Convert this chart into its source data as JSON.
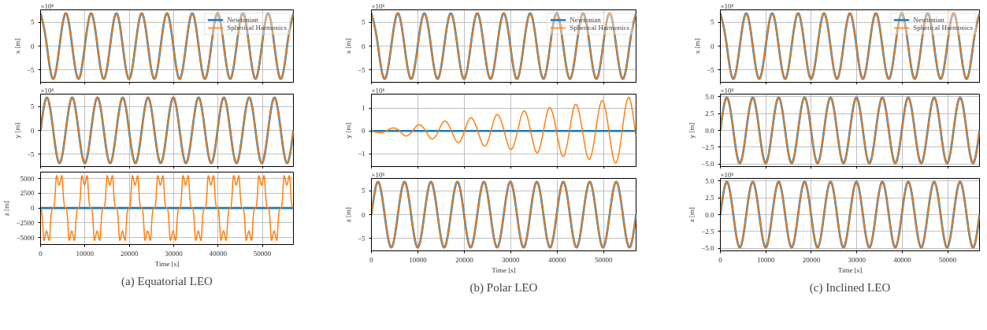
{
  "chart_data": [
    {
      "type": "line",
      "ylabel": "x [m]",
      "annotations": [
        "×10⁶"
      ],
      "legend": "top right",
      "grid": true,
      "tick_labels": "y",
      "xlim": [
        0,
        57000
      ],
      "xticks": [
        0,
        10000,
        20000,
        30000,
        40000,
        50000
      ],
      "ylim": [
        -7.6,
        7.6
      ],
      "yticks": [
        {
          "value": -5,
          "label": "−5"
        },
        0,
        5
      ],
      "x": [
        0,
        1425,
        2850,
        4275,
        5700,
        7125,
        8550,
        9975,
        11400,
        12825,
        14250,
        15675,
        17100,
        18525,
        19950,
        21375,
        22800,
        24225,
        25650,
        27075,
        28500,
        29925,
        31350,
        32775,
        34200,
        35625,
        37050,
        38475,
        39900,
        41325,
        42750,
        44175,
        45600,
        47025,
        48450,
        49875,
        51300,
        52725,
        54150,
        55575,
        57000
      ],
      "series": [
        {
          "name": "Newtonian",
          "color": "#1f77b4",
          "values": [
            6.9,
            0,
            -6.9,
            0,
            6.9,
            0,
            -6.9,
            0,
            6.9,
            0,
            -6.9,
            0,
            6.9,
            0,
            -6.9,
            0,
            6.9,
            0,
            -6.9,
            0,
            6.9,
            0,
            -6.9,
            0,
            6.9,
            0,
            -6.9,
            0,
            6.9,
            0,
            -6.9,
            0,
            6.9,
            0,
            -6.9,
            0,
            6.9,
            0,
            -6.9,
            0,
            6.9
          ]
        },
        {
          "name": "Spherical Harmonics",
          "color": "#ff7f0e",
          "values": [
            6.9,
            0,
            -6.9,
            0,
            6.9,
            0,
            -6.9,
            0,
            6.9,
            0,
            -6.9,
            0,
            6.9,
            0,
            -6.9,
            0,
            6.9,
            0,
            -6.9,
            0,
            6.9,
            0,
            -6.9,
            0,
            6.9,
            0,
            -6.9,
            0,
            6.9,
            0,
            -6.9,
            0,
            6.9,
            0,
            -6.9,
            0,
            6.9,
            0,
            -6.9,
            0,
            6.9
          ]
        }
      ]
    },
    {
      "type": "line",
      "ylabel": "y [m]",
      "annotations": [
        "×10⁶"
      ],
      "grid": true,
      "tick_labels": "y",
      "xlim": [
        0,
        57000
      ],
      "xticks": [
        0,
        10000,
        20000,
        30000,
        40000,
        50000
      ],
      "ylim": [
        -7.6,
        7.6
      ],
      "yticks": [
        {
          "value": -5,
          "label": "−5"
        },
        0,
        5
      ],
      "x": [
        0,
        1425,
        2850,
        4275,
        5700,
        7125,
        8550,
        9975,
        11400,
        12825,
        14250,
        15675,
        17100,
        18525,
        19950,
        21375,
        22800,
        24225,
        25650,
        27075,
        28500,
        29925,
        31350,
        32775,
        34200,
        35625,
        37050,
        38475,
        39900,
        41325,
        42750,
        44175,
        45600,
        47025,
        48450,
        49875,
        51300,
        52725,
        54150,
        55575,
        57000
      ],
      "series": [
        {
          "color": "#1f77b4",
          "values": [
            0,
            6.9,
            0,
            -6.9,
            0,
            6.9,
            0,
            -6.9,
            0,
            6.9,
            0,
            -6.9,
            0,
            6.9,
            0,
            -6.9,
            0,
            6.9,
            0,
            -6.9,
            0,
            6.9,
            0,
            -6.9,
            0,
            6.9,
            0,
            -6.9,
            0,
            6.9,
            0,
            -6.9,
            0,
            6.9,
            0,
            -6.9,
            0,
            6.9,
            0,
            -6.9,
            0
          ]
        },
        {
          "color": "#ff7f0e",
          "values": [
            0,
            6.9,
            0,
            -6.9,
            0,
            6.9,
            0,
            -6.9,
            0,
            6.9,
            0,
            -6.9,
            0,
            6.9,
            0,
            -6.9,
            0,
            6.9,
            0,
            -6.9,
            0,
            6.9,
            0,
            -6.9,
            0,
            6.9,
            0,
            -6.9,
            0,
            6.9,
            0,
            -6.9,
            0,
            6.9,
            0,
            -6.9,
            0,
            6.9,
            0,
            -6.9,
            0
          ]
        }
      ]
    },
    {
      "type": "line",
      "title": "(a) Equatorial LEO",
      "xlabel": "Time [s]",
      "ylabel": "z [m]",
      "grid": true,
      "xlim": [
        0,
        57000
      ],
      "xticks": [
        0,
        10000,
        20000,
        30000,
        40000,
        50000
      ],
      "ylim": [
        -6200,
        6100
      ],
      "yticks": [
        {
          "value": -5000,
          "label": "−5000"
        },
        {
          "value": -2500,
          "label": "−2500"
        },
        0,
        2500,
        5000
      ],
      "series": [
        {
          "color": "#1f77b4",
          "x": [
            0,
            57000
          ],
          "values": [
            0,
            0
          ]
        },
        {
          "color": "#ff7f0e",
          "x": [
            0,
            200,
            450,
            750,
            1350,
            1950,
            2250,
            2550,
            2850,
            3050,
            3300,
            3600,
            4200,
            4800,
            5100,
            5400,
            5700,
            5900,
            6150,
            6450,
            7050,
            7650,
            7950,
            8250,
            8550,
            8750,
            9000,
            9300,
            9900,
            10500,
            10800,
            11100,
            11400,
            11600,
            11850,
            12150,
            12750,
            13350,
            13650,
            13950,
            14250,
            14450,
            14700,
            15000,
            15600,
            16200,
            16500,
            16800,
            17100,
            17300,
            17550,
            17850,
            18450,
            19050,
            19350,
            19650,
            19950,
            20150,
            20400,
            20700,
            21300,
            21900,
            22200,
            22500,
            22800,
            23000,
            23250,
            23550,
            24150,
            24750,
            25050,
            25350,
            25650,
            25850,
            26100,
            26400,
            27000,
            27600,
            27900,
            28200,
            28500,
            28700,
            28950,
            29250,
            29850,
            30450,
            30750,
            31050,
            31350,
            31550,
            31800,
            32100,
            32700,
            33300,
            33600,
            33900,
            34200,
            34400,
            34650,
            34950,
            35550,
            36150,
            36450,
            36750,
            37050,
            37250,
            37500,
            37800,
            38400,
            39000,
            39300,
            39600,
            39900,
            40100,
            40350,
            40650,
            41250,
            41850,
            42150,
            42450,
            42750,
            42950,
            43200,
            43500,
            44100,
            44700,
            45000,
            45300,
            45600,
            45800,
            46050,
            46350,
            46950,
            47550,
            47850,
            48150,
            48450,
            48650,
            48900,
            49200,
            49800,
            50400,
            50700,
            51000,
            51300,
            51500,
            51750,
            52050,
            52650,
            53250,
            53550,
            53850,
            54150,
            54350,
            54600,
            54900,
            55500,
            56100,
            56400,
            56700,
            57000
          ],
          "values": [
            0,
            -300,
            -2500,
            -5500,
            -3900,
            -5500,
            -2500,
            -300,
            0,
            300,
            2500,
            5500,
            3900,
            5500,
            2500,
            300,
            0,
            -300,
            -2500,
            -5500,
            -3900,
            -5500,
            -2500,
            -300,
            0,
            300,
            2500,
            5500,
            3900,
            5500,
            2500,
            300,
            0,
            -300,
            -2500,
            -5500,
            -3900,
            -5500,
            -2500,
            -300,
            0,
            300,
            2500,
            5500,
            3900,
            5500,
            2500,
            300,
            0,
            -300,
            -2500,
            -5500,
            -3900,
            -5500,
            -2500,
            -300,
            0,
            300,
            2500,
            5500,
            3900,
            5500,
            2500,
            300,
            0,
            -300,
            -2500,
            -5500,
            -3900,
            -5500,
            -2500,
            -300,
            0,
            300,
            2500,
            5500,
            3900,
            5500,
            2500,
            300,
            0,
            -300,
            -2500,
            -5500,
            -3900,
            -5500,
            -2500,
            -300,
            0,
            300,
            2500,
            5500,
            3900,
            5500,
            2500,
            300,
            0,
            -300,
            -2500,
            -5500,
            -3900,
            -5500,
            -2500,
            -300,
            0,
            300,
            2500,
            5500,
            3900,
            5500,
            2500,
            300,
            0,
            -300,
            -2500,
            -5500,
            -3900,
            -5500,
            -2500,
            -300,
            0,
            300,
            2500,
            5500,
            3900,
            5500,
            2500,
            300,
            0,
            -300,
            -2500,
            -5500,
            -3900,
            -5500,
            -2500,
            -300,
            0,
            300,
            2500,
            5500,
            3900,
            5500,
            2500,
            300,
            0,
            -300,
            -2500,
            -5500,
            -3900,
            -5500,
            -2500,
            -300,
            0,
            300,
            2500,
            5500,
            3900,
            5500,
            2500,
            300,
            0
          ]
        }
      ]
    },
    {
      "type": "line",
      "ylabel": "x [m]",
      "annotations": [
        "×10⁶"
      ],
      "legend": "top right",
      "grid": true,
      "tick_labels": "y",
      "xlim": [
        0,
        57000
      ],
      "xticks": [
        0,
        10000,
        20000,
        30000,
        40000,
        50000
      ],
      "ylim": [
        -7.6,
        7.6
      ],
      "yticks": [
        {
          "value": -5,
          "label": "−5"
        },
        0,
        5
      ],
      "x": [
        0,
        1425,
        2850,
        4275,
        5700,
        7125,
        8550,
        9975,
        11400,
        12825,
        14250,
        15675,
        17100,
        18525,
        19950,
        21375,
        22800,
        24225,
        25650,
        27075,
        28500,
        29925,
        31350,
        32775,
        34200,
        35625,
        37050,
        38475,
        39900,
        41325,
        42750,
        44175,
        45600,
        47025,
        48450,
        49875,
        51300,
        52725,
        54150,
        55575,
        57000
      ],
      "series": [
        {
          "name": "Newtonian",
          "color": "#1f77b4",
          "values": [
            6.9,
            0,
            -6.9,
            0,
            6.9,
            0,
            -6.9,
            0,
            6.9,
            0,
            -6.9,
            0,
            6.9,
            0,
            -6.9,
            0,
            6.9,
            0,
            -6.9,
            0,
            6.9,
            0,
            -6.9,
            0,
            6.9,
            0,
            -6.9,
            0,
            6.9,
            0,
            -6.9,
            0,
            6.9,
            0,
            -6.9,
            0,
            6.9,
            0,
            -6.9,
            0,
            6.9
          ]
        },
        {
          "name": "Spherical Harmonics",
          "color": "#ff7f0e",
          "values": [
            6.9,
            0,
            -6.9,
            0,
            6.9,
            0,
            -6.9,
            0,
            6.9,
            0,
            -6.9,
            0,
            6.9,
            0,
            -6.9,
            0,
            6.9,
            0,
            -6.9,
            0,
            6.9,
            0,
            -6.9,
            0,
            6.9,
            0,
            -6.9,
            0,
            6.9,
            0,
            -6.9,
            0,
            6.9,
            0,
            -6.9,
            0,
            6.9,
            0,
            -6.9,
            0,
            6.9
          ]
        }
      ]
    },
    {
      "type": "line",
      "ylabel": "y [m]",
      "annotations": [
        "×10⁶"
      ],
      "grid": true,
      "tick_labels": "y",
      "xlim": [
        0,
        57000
      ],
      "xticks": [
        0,
        10000,
        20000,
        30000,
        40000,
        50000
      ],
      "ylim": [
        -1.55,
        1.6
      ],
      "yticks": [
        {
          "value": -1,
          "label": "−1"
        },
        0,
        1
      ],
      "series": [
        {
          "color": "#1f77b4",
          "x": [
            0,
            57000
          ],
          "values": [
            0,
            0
          ]
        },
        {
          "color": "#ff7f0e",
          "x": [
            0,
            1850,
            3255,
            4660,
            6065,
            7470,
            8860,
            10250,
            11675,
            13100,
            14450,
            15800,
            17250,
            18700,
            20050,
            21400,
            22900,
            24400,
            25750,
            27100,
            28580,
            30060,
            31480,
            32900,
            34300,
            35700,
            37050,
            38400,
            39850,
            41300,
            42650,
            44000,
            45450,
            46900,
            48300,
            49700,
            51150,
            52600,
            54000,
            55400,
            56800,
            57000
          ],
          "values": [
            0,
            -0.08,
            0,
            0.13,
            0,
            -0.22,
            0,
            0.27,
            0,
            -0.35,
            0,
            0.43,
            0,
            -0.51,
            0,
            0.57,
            0,
            -0.66,
            0,
            0.71,
            0,
            -0.81,
            0,
            0.87,
            0,
            -0.95,
            0,
            1.02,
            0,
            -1.11,
            0,
            1.16,
            0,
            -1.24,
            0,
            1.32,
            0,
            -1.4,
            0,
            1.46,
            0,
            -0.2
          ]
        }
      ]
    },
    {
      "type": "line",
      "title": "(b) Polar LEO",
      "xlabel": "Time [s]",
      "ylabel": "z [m]",
      "annotations": [
        "×10⁶"
      ],
      "grid": true,
      "xlim": [
        0,
        57000
      ],
      "xticks": [
        0,
        10000,
        20000,
        30000,
        40000,
        50000
      ],
      "ylim": [
        -7.6,
        7.6
      ],
      "yticks": [
        {
          "value": -5,
          "label": "−5"
        },
        0,
        5
      ],
      "x": [
        0,
        1425,
        2850,
        4275,
        5700,
        7125,
        8550,
        9975,
        11400,
        12825,
        14250,
        15675,
        17100,
        18525,
        19950,
        21375,
        22800,
        24225,
        25650,
        27075,
        28500,
        29925,
        31350,
        32775,
        34200,
        35625,
        37050,
        38475,
        39900,
        41325,
        42750,
        44175,
        45600,
        47025,
        48450,
        49875,
        51300,
        52725,
        54150,
        55575,
        57000
      ],
      "series": [
        {
          "color": "#1f77b4",
          "values": [
            0,
            6.9,
            0,
            -6.9,
            0,
            6.9,
            0,
            -6.9,
            0,
            6.9,
            0,
            -6.9,
            0,
            6.9,
            0,
            -6.9,
            0,
            6.9,
            0,
            -6.9,
            0,
            6.9,
            0,
            -6.9,
            0,
            6.9,
            0,
            -6.9,
            0,
            6.9,
            0,
            -6.9,
            0,
            6.9,
            0,
            -6.9,
            0,
            6.9,
            0,
            -6.9,
            0
          ]
        },
        {
          "color": "#ff7f0e",
          "values": [
            0,
            6.9,
            0,
            -6.9,
            0,
            6.9,
            0,
            -6.9,
            0,
            6.9,
            0,
            -6.9,
            0,
            6.9,
            0,
            -6.9,
            0,
            6.9,
            0,
            -6.9,
            0,
            6.9,
            0,
            -6.9,
            0,
            6.9,
            0,
            -6.9,
            0,
            6.9,
            0,
            -6.9,
            0,
            6.9,
            0,
            -6.9,
            0,
            6.9,
            0,
            -6.9,
            0
          ]
        }
      ]
    },
    {
      "type": "line",
      "ylabel": "x [m]",
      "annotations": [
        "×10⁶"
      ],
      "legend": "top right",
      "grid": true,
      "tick_labels": "y",
      "xlim": [
        0,
        57000
      ],
      "xticks": [
        0,
        10000,
        20000,
        30000,
        40000,
        50000
      ],
      "ylim": [
        -7.6,
        7.6
      ],
      "yticks": [
        {
          "value": -5,
          "label": "−5"
        },
        0,
        5
      ],
      "x": [
        0,
        1425,
        2850,
        4275,
        5700,
        7125,
        8550,
        9975,
        11400,
        12825,
        14250,
        15675,
        17100,
        18525,
        19950,
        21375,
        22800,
        24225,
        25650,
        27075,
        28500,
        29925,
        31350,
        32775,
        34200,
        35625,
        37050,
        38475,
        39900,
        41325,
        42750,
        44175,
        45600,
        47025,
        48450,
        49875,
        51300,
        52725,
        54150,
        55575,
        57000
      ],
      "series": [
        {
          "name": "Newtonian",
          "color": "#1f77b4",
          "values": [
            6.9,
            0,
            -6.9,
            0,
            6.9,
            0,
            -6.9,
            0,
            6.9,
            0,
            -6.9,
            0,
            6.9,
            0,
            -6.9,
            0,
            6.9,
            0,
            -6.9,
            0,
            6.9,
            0,
            -6.9,
            0,
            6.9,
            0,
            -6.9,
            0,
            6.9,
            0,
            -6.9,
            0,
            6.9,
            0,
            -6.9,
            0,
            6.9,
            0,
            -6.9,
            0,
            6.9
          ]
        },
        {
          "name": "Spherical Harmonics",
          "color": "#ff7f0e",
          "values": [
            6.9,
            0,
            -6.9,
            0,
            6.9,
            0,
            -6.9,
            0,
            6.9,
            0,
            -6.9,
            0,
            6.9,
            0,
            -6.9,
            0,
            6.9,
            0,
            -6.9,
            0,
            6.9,
            0,
            -6.9,
            0,
            6.9,
            0,
            -6.9,
            0,
            6.9,
            0,
            -6.9,
            0,
            6.9,
            0,
            -6.9,
            0,
            6.9,
            0,
            -6.9,
            0,
            6.9
          ]
        }
      ]
    },
    {
      "type": "line",
      "ylabel": "y [m]",
      "annotations": [
        "×10⁶"
      ],
      "grid": true,
      "tick_labels": "y",
      "xlim": [
        0,
        57000
      ],
      "xticks": [
        0,
        10000,
        20000,
        30000,
        40000,
        50000
      ],
      "ylim": [
        -5.4,
        5.4
      ],
      "yticks": [
        {
          "value": -5,
          "label": "−5.0"
        },
        {
          "value": -2.5,
          "label": "−2.5"
        },
        {
          "value": 0,
          "label": "0.0"
        },
        2.5,
        {
          "value": 5,
          "label": "5.0"
        }
      ],
      "x": [
        0,
        1425,
        2850,
        4275,
        5700,
        7125,
        8550,
        9975,
        11400,
        12825,
        14250,
        15675,
        17100,
        18525,
        19950,
        21375,
        22800,
        24225,
        25650,
        27075,
        28500,
        29925,
        31350,
        32775,
        34200,
        35625,
        37050,
        38475,
        39900,
        41325,
        42750,
        44175,
        45600,
        47025,
        48450,
        49875,
        51300,
        52725,
        54150,
        55575,
        57000
      ],
      "series": [
        {
          "color": "#1f77b4",
          "values": [
            0,
            4.9,
            0,
            -4.9,
            0,
            4.9,
            0,
            -4.9,
            0,
            4.9,
            0,
            -4.9,
            0,
            4.9,
            0,
            -4.9,
            0,
            4.9,
            0,
            -4.9,
            0,
            4.9,
            0,
            -4.9,
            0,
            4.9,
            0,
            -4.9,
            0,
            4.9,
            0,
            -4.9,
            0,
            4.9,
            0,
            -4.9,
            0,
            4.9,
            0,
            -4.9,
            0
          ]
        },
        {
          "color": "#ff7f0e",
          "values": [
            0,
            4.9,
            0,
            -4.9,
            0,
            4.9,
            0,
            -4.9,
            0,
            4.9,
            0,
            -4.9,
            0,
            4.9,
            0,
            -4.9,
            0,
            4.9,
            0,
            -4.9,
            0,
            4.9,
            0,
            -4.9,
            0,
            4.9,
            0,
            -4.9,
            0,
            4.9,
            0,
            -4.9,
            0,
            4.9,
            0,
            -4.9,
            0,
            4.9,
            0,
            -4.9,
            0
          ]
        }
      ]
    },
    {
      "type": "line",
      "title": "(c) Inclined LEO",
      "xlabel": "Time [s]",
      "ylabel": "z [m]",
      "annotations": [
        "×10⁶"
      ],
      "grid": true,
      "xlim": [
        0,
        57000
      ],
      "xticks": [
        0,
        10000,
        20000,
        30000,
        40000,
        50000
      ],
      "ylim": [
        -5.4,
        5.4
      ],
      "yticks": [
        {
          "value": -5,
          "label": "−5.0"
        },
        {
          "value": -2.5,
          "label": "−2.5"
        },
        {
          "value": 0,
          "label": "0.0"
        },
        2.5,
        {
          "value": 5,
          "label": "5.0"
        }
      ],
      "x": [
        0,
        1425,
        2850,
        4275,
        5700,
        7125,
        8550,
        9975,
        11400,
        12825,
        14250,
        15675,
        17100,
        18525,
        19950,
        21375,
        22800,
        24225,
        25650,
        27075,
        28500,
        29925,
        31350,
        32775,
        34200,
        35625,
        37050,
        38475,
        39900,
        41325,
        42750,
        44175,
        45600,
        47025,
        48450,
        49875,
        51300,
        52725,
        54150,
        55575,
        57000
      ],
      "series": [
        {
          "color": "#1f77b4",
          "values": [
            0,
            4.9,
            0,
            -4.9,
            0,
            4.9,
            0,
            -4.9,
            0,
            4.9,
            0,
            -4.9,
            0,
            4.9,
            0,
            -4.9,
            0,
            4.9,
            0,
            -4.9,
            0,
            4.9,
            0,
            -4.9,
            0,
            4.9,
            0,
            -4.9,
            0,
            4.9,
            0,
            -4.9,
            0,
            4.9,
            0,
            -4.9,
            0,
            4.9,
            0,
            -4.9,
            0
          ]
        },
        {
          "color": "#ff7f0e",
          "values": [
            0,
            4.9,
            0,
            -4.9,
            0,
            4.9,
            0,
            -4.9,
            0,
            4.9,
            0,
            -4.9,
            0,
            4.9,
            0,
            -4.9,
            0,
            4.9,
            0,
            -4.9,
            0,
            4.9,
            0,
            -4.9,
            0,
            4.9,
            0,
            -4.9,
            0,
            4.9,
            0,
            -4.9,
            0,
            4.9,
            0,
            -4.9,
            0,
            4.9,
            0,
            -4.9,
            0
          ]
        }
      ]
    }
  ]
}
